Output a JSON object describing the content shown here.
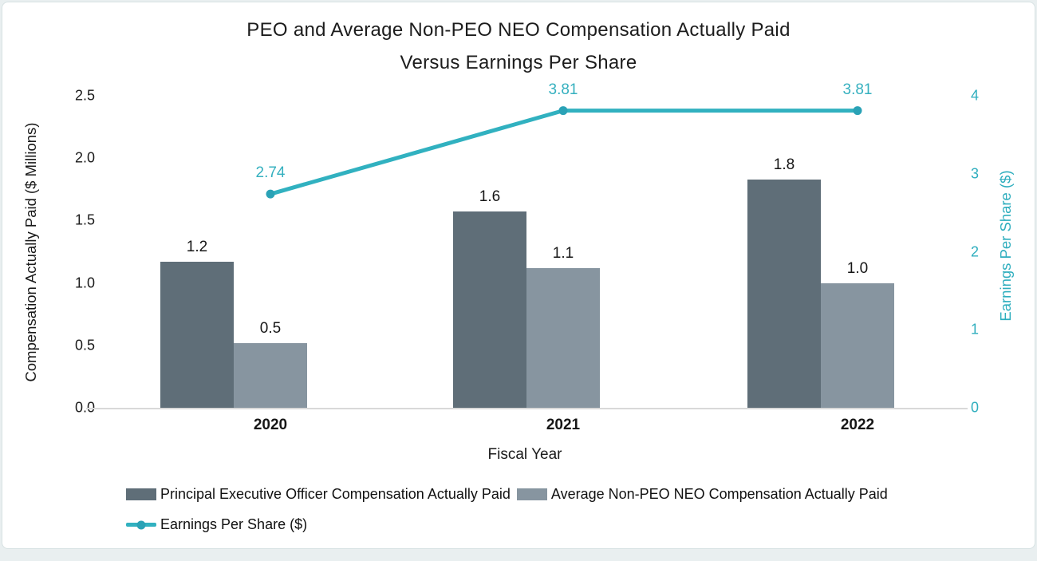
{
  "chart_data": {
    "type": "bar-line-combo",
    "title_line1": "PEO and Average Non-PEO NEO Compensation Actually Paid",
    "title_line2": "Versus Earnings Per Share",
    "xlabel": "Fiscal Year",
    "categories": [
      "2020",
      "2021",
      "2022"
    ],
    "series": [
      {
        "name": "Principal Executive Officer Compensation Actually Paid",
        "type": "bar",
        "axis": "left",
        "values": [
          1.17,
          1.57,
          1.83
        ],
        "labels": [
          "1.2",
          "1.6",
          "1.8"
        ],
        "color": "#5F6E78"
      },
      {
        "name": "Average Non-PEO NEO Compensation Actually Paid",
        "type": "bar",
        "axis": "left",
        "values": [
          0.52,
          1.12,
          1.0
        ],
        "labels": [
          "0.5",
          "1.1",
          "1.0"
        ],
        "color": "#8795A0"
      },
      {
        "name": "Earnings Per Share ($)",
        "type": "line",
        "axis": "right",
        "values": [
          2.74,
          3.81,
          3.81
        ],
        "labels": [
          "2.74",
          "3.81",
          "3.81"
        ],
        "color": "#31B1C0",
        "marker_color": "#2AA2B6"
      }
    ],
    "left_axis": {
      "label": "Compensation Actually Paid ($ Millions)",
      "ticks": [
        "0.0",
        "0.5",
        "1.0",
        "1.5",
        "2.0",
        "2.5"
      ],
      "min": 0,
      "max": 2.5
    },
    "right_axis": {
      "label": "Earnings Per Share ($)",
      "ticks": [
        "0",
        "1",
        "2",
        "3",
        "4"
      ],
      "min": 0,
      "max": 4,
      "color": "#2FAEBE"
    },
    "grid": false,
    "legend_position": "bottom-left",
    "colors": {
      "axis_line": "#d9d9d9",
      "text": "#1a1a1a",
      "teal_label": "#35B0BF"
    }
  }
}
